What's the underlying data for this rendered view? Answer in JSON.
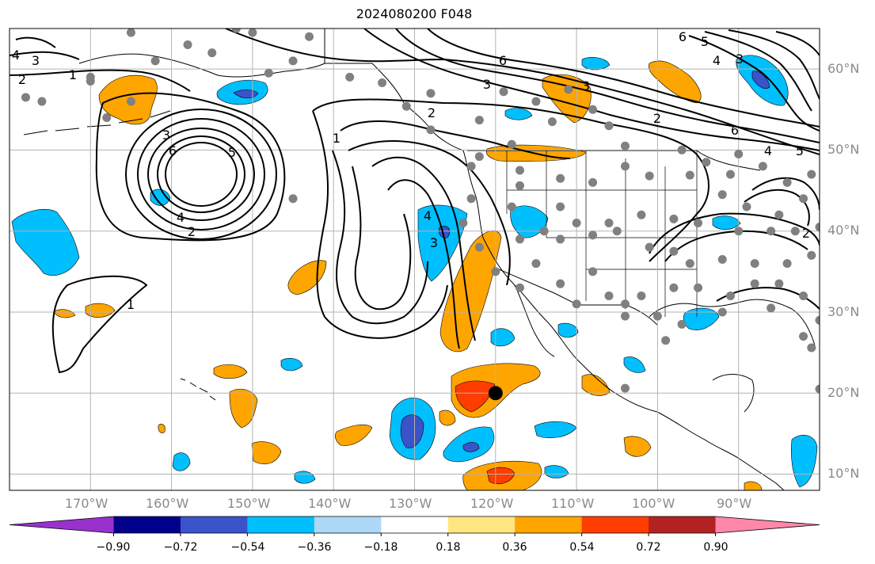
{
  "title": "2024080200 F048",
  "map": {
    "lon_range": [
      -180,
      -80
    ],
    "lat_range": [
      8,
      65
    ],
    "latitude_labels": [
      "60°N",
      "50°N",
      "40°N",
      "30°N",
      "20°N",
      "10°N"
    ],
    "longitude_labels": [
      "170°W",
      "160°W",
      "150°W",
      "140°W",
      "130°W",
      "120°W",
      "110°W",
      "100°W",
      "90°W"
    ],
    "gridlines": true,
    "contour_labels": [
      "4",
      "3",
      "2",
      "1",
      "3",
      "6",
      "5",
      "4",
      "2",
      "1",
      "1",
      "2",
      "3",
      "4",
      "3",
      "6",
      "3",
      "2",
      "6",
      "4",
      "5",
      "6",
      "5",
      "4",
      "3",
      "2"
    ],
    "marked_point": {
      "lon": -120,
      "lat": 20
    },
    "colors": {
      "grid": "#b3b3b3",
      "contours": "#000000",
      "stations": "#808080",
      "marked_point": "#000000",
      "anomaly_orange": "#ffa500",
      "anomaly_red": "#ff3d00",
      "anomaly_blue": "#00bfff",
      "anomaly_navy": "#3a53c9"
    }
  },
  "colorbar": {
    "ticks": [
      "−0.90",
      "−0.72",
      "−0.54",
      "−0.36",
      "−0.18",
      "0.18",
      "0.36",
      "0.54",
      "0.72",
      "0.90"
    ],
    "colors": [
      "#9932cc",
      "#00008b",
      "#3a53c9",
      "#00bfff",
      "#add8f7",
      "#ffffff",
      "#ffe680",
      "#ffa500",
      "#ff3d00",
      "#b22222",
      "#ff88aa"
    ],
    "extend": "both"
  }
}
